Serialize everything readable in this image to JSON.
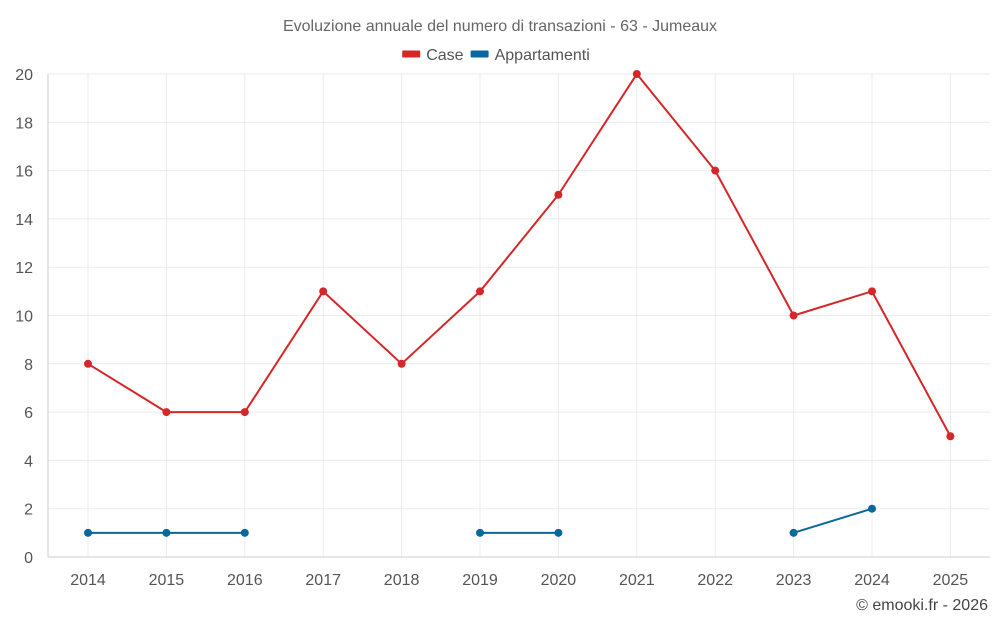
{
  "chart_data": {
    "type": "line",
    "title": "Evoluzione annuale del numero di transazioni - 63 - Jumeaux",
    "categories": [
      "2014",
      "2015",
      "2016",
      "2017",
      "2018",
      "2019",
      "2020",
      "2021",
      "2022",
      "2023",
      "2024",
      "2025"
    ],
    "series": [
      {
        "name": "Case",
        "color": "#d62728",
        "values": [
          8,
          6,
          6,
          11,
          8,
          11,
          15,
          20,
          16,
          10,
          11,
          5
        ]
      },
      {
        "name": "Appartamenti",
        "color": "#08679c",
        "values": [
          1,
          1,
          1,
          null,
          null,
          1,
          1,
          null,
          null,
          1,
          2,
          null
        ]
      }
    ],
    "ylim": [
      0,
      20
    ],
    "yticks": [
      0,
      2,
      4,
      6,
      8,
      10,
      12,
      14,
      16,
      18,
      20
    ],
    "xlabel": "",
    "ylabel": "",
    "grid": true,
    "legend": "top-center"
  },
  "copyright": "© emooki.fr - 2026"
}
